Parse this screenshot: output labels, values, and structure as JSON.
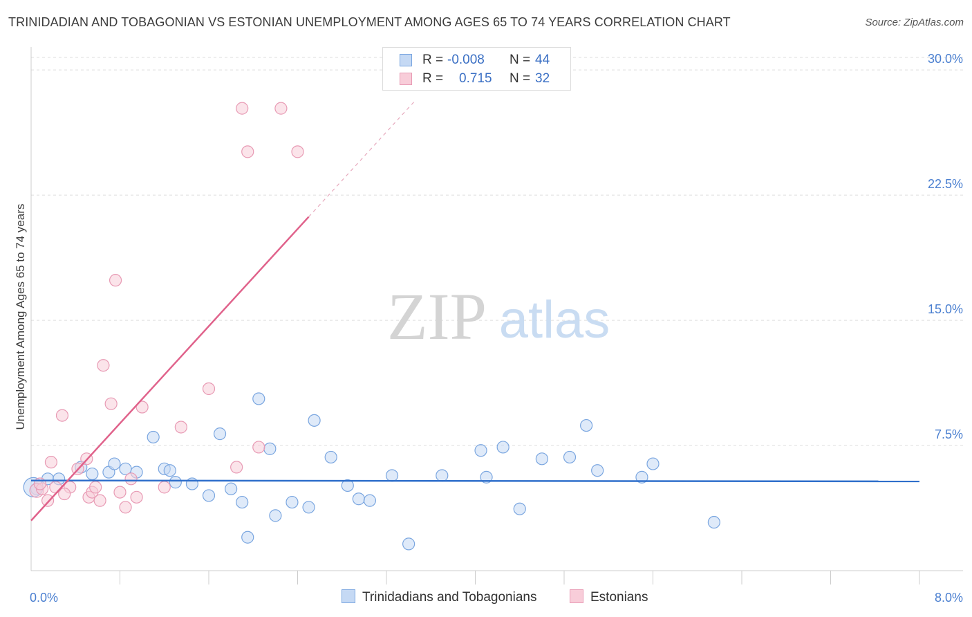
{
  "title": "TRINIDADIAN AND TOBAGONIAN VS ESTONIAN UNEMPLOYMENT AMONG AGES 65 TO 74 YEARS CORRELATION CHART",
  "source": "Source: ZipAtlas.com",
  "watermark": {
    "zip": "ZIP",
    "atlas": "atlas"
  },
  "legend": {
    "rows": [
      {
        "r_label": "R =",
        "r_value": "-0.008",
        "n_label": "N =",
        "n_value": "44",
        "color": "#7aa6e0",
        "fill": "#c5d9f4"
      },
      {
        "r_label": "R =",
        "r_value": "0.715",
        "n_label": "N =",
        "n_value": "32",
        "color": "#e89ab4",
        "fill": "#f8cdd9"
      }
    ]
  },
  "bottom_legend": {
    "series_a": "Trinidadians and Tobagonians",
    "series_b": "Estonians"
  },
  "colors": {
    "blue": "#7aa6e0",
    "blue_fill": "#c5d9f4",
    "blue_line": "#2f6fcb",
    "pink": "#e89ab4",
    "pink_fill": "#f8cdd9",
    "pink_line": "#e0628b",
    "tick_label": "#4a7fd0",
    "grid": "#dddddd"
  },
  "chart_data": {
    "type": "scatter",
    "title": "TRINIDADIAN AND TOBAGONIAN VS ESTONIAN UNEMPLOYMENT AMONG AGES 65 TO 74 YEARS CORRELATION CHART",
    "xlabel": "",
    "ylabel": "Unemployment Among Ages 65 to 74 years",
    "xlim": [
      0,
      8
    ],
    "ylim": [
      0,
      31
    ],
    "x_tick_labels": [
      "0.0%",
      "8.0%"
    ],
    "y_ticks": [
      7.5,
      15.0,
      22.5,
      30.0
    ],
    "y_tick_labels": [
      "7.5%",
      "15.0%",
      "22.5%",
      "30.0%"
    ],
    "grid": true,
    "series": [
      {
        "name": "Trinidadians and Tobagonians",
        "r": -0.008,
        "n": 44,
        "trend": {
          "x": [
            0,
            8
          ],
          "y": [
            5.4,
            5.35
          ]
        },
        "points": [
          [
            0.05,
            4.9
          ],
          [
            0.15,
            5.5
          ],
          [
            0.25,
            5.5
          ],
          [
            0.45,
            6.2
          ],
          [
            0.55,
            5.8
          ],
          [
            0.7,
            5.9
          ],
          [
            0.75,
            6.4
          ],
          [
            0.85,
            6.1
          ],
          [
            0.95,
            5.9
          ],
          [
            1.1,
            8.0
          ],
          [
            1.2,
            6.1
          ],
          [
            1.25,
            6.0
          ],
          [
            1.3,
            5.3
          ],
          [
            1.45,
            5.2
          ],
          [
            1.6,
            4.5
          ],
          [
            1.7,
            8.2
          ],
          [
            1.8,
            4.9
          ],
          [
            1.9,
            4.1
          ],
          [
            1.95,
            2.0
          ],
          [
            2.05,
            10.3
          ],
          [
            2.15,
            7.3
          ],
          [
            2.2,
            3.3
          ],
          [
            2.35,
            4.1
          ],
          [
            2.5,
            3.8
          ],
          [
            2.55,
            9.0
          ],
          [
            2.7,
            6.8
          ],
          [
            2.85,
            5.1
          ],
          [
            2.95,
            4.3
          ],
          [
            3.05,
            4.2
          ],
          [
            3.25,
            5.7
          ],
          [
            3.4,
            1.6
          ],
          [
            3.7,
            5.7
          ],
          [
            4.05,
            7.2
          ],
          [
            4.1,
            5.6
          ],
          [
            4.25,
            7.4
          ],
          [
            4.4,
            3.7
          ],
          [
            4.6,
            6.7
          ],
          [
            4.85,
            6.8
          ],
          [
            5.0,
            8.7
          ],
          [
            5.1,
            6.0
          ],
          [
            5.5,
            5.6
          ],
          [
            5.6,
            6.4
          ],
          [
            6.15,
            2.9
          ],
          [
            0.02,
            5.0
          ]
        ]
      },
      {
        "name": "Estonians",
        "r": 0.715,
        "n": 32,
        "trend": {
          "x": [
            0,
            2.5
          ],
          "y": [
            3.0,
            21.2
          ]
        },
        "trend_ext": {
          "x": [
            2.5,
            3.45
          ],
          "y": [
            21.2,
            28.1
          ]
        },
        "points": [
          [
            0.05,
            4.8
          ],
          [
            0.1,
            4.9
          ],
          [
            0.18,
            6.5
          ],
          [
            0.22,
            5.0
          ],
          [
            0.28,
            9.3
          ],
          [
            0.35,
            5.0
          ],
          [
            0.42,
            6.1
          ],
          [
            0.5,
            6.7
          ],
          [
            0.52,
            4.4
          ],
          [
            0.55,
            4.7
          ],
          [
            0.58,
            5.0
          ],
          [
            0.62,
            4.2
          ],
          [
            0.65,
            12.3
          ],
          [
            0.72,
            10.0
          ],
          [
            0.76,
            17.4
          ],
          [
            0.8,
            4.7
          ],
          [
            0.85,
            3.8
          ],
          [
            0.9,
            5.5
          ],
          [
            0.95,
            4.4
          ],
          [
            1.0,
            9.8
          ],
          [
            1.2,
            5.0
          ],
          [
            1.35,
            8.6
          ],
          [
            1.6,
            10.9
          ],
          [
            1.85,
            6.2
          ],
          [
            1.9,
            27.7
          ],
          [
            1.95,
            25.1
          ],
          [
            2.05,
            7.4
          ],
          [
            2.25,
            27.7
          ],
          [
            2.4,
            25.1
          ],
          [
            0.15,
            4.2
          ],
          [
            0.08,
            5.2
          ],
          [
            0.3,
            4.6
          ]
        ]
      }
    ]
  }
}
